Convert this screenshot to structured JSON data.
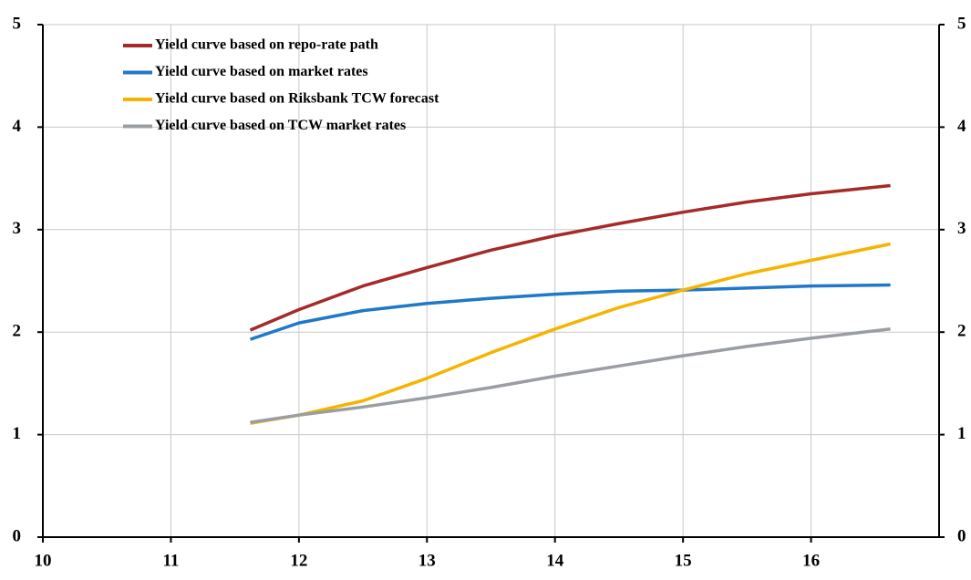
{
  "chart_data": {
    "type": "line",
    "x": [
      11.62,
      12,
      12.5,
      13,
      13.5,
      14,
      14.5,
      15,
      15.5,
      16,
      16.62
    ],
    "series": [
      {
        "name": "Yield curve based on repo-rate path",
        "color": "#a52a2a",
        "values": [
          2.02,
          2.22,
          2.45,
          2.63,
          2.8,
          2.94,
          3.06,
          3.17,
          3.27,
          3.35,
          3.43
        ]
      },
      {
        "name": "Yield curve based on market rates",
        "color": "#1f78c8",
        "values": [
          1.93,
          2.09,
          2.21,
          2.28,
          2.33,
          2.37,
          2.4,
          2.41,
          2.43,
          2.45,
          2.46
        ]
      },
      {
        "name": "Yield curve based on Riksbank TCW forecast",
        "color": "#f5b400",
        "values": [
          1.11,
          1.19,
          1.33,
          1.55,
          1.8,
          2.03,
          2.24,
          2.41,
          2.57,
          2.7,
          2.86
        ]
      },
      {
        "name": "Yield curve based on TCW market rates",
        "color": "#9a9ea3",
        "values": [
          1.12,
          1.19,
          1.27,
          1.36,
          1.46,
          1.57,
          1.67,
          1.77,
          1.86,
          1.94,
          2.03
        ]
      }
    ],
    "xlim": [
      10,
      17
    ],
    "xticks": [
      10,
      11,
      12,
      13,
      14,
      15,
      16
    ],
    "ylim": [
      0,
      5
    ],
    "yticks": [
      0,
      1,
      2,
      3,
      4,
      5
    ],
    "y2lim": [
      0,
      5
    ],
    "y2ticks": [
      0,
      1,
      2,
      3,
      4,
      5
    ],
    "grid": true,
    "legend": "top-left"
  }
}
